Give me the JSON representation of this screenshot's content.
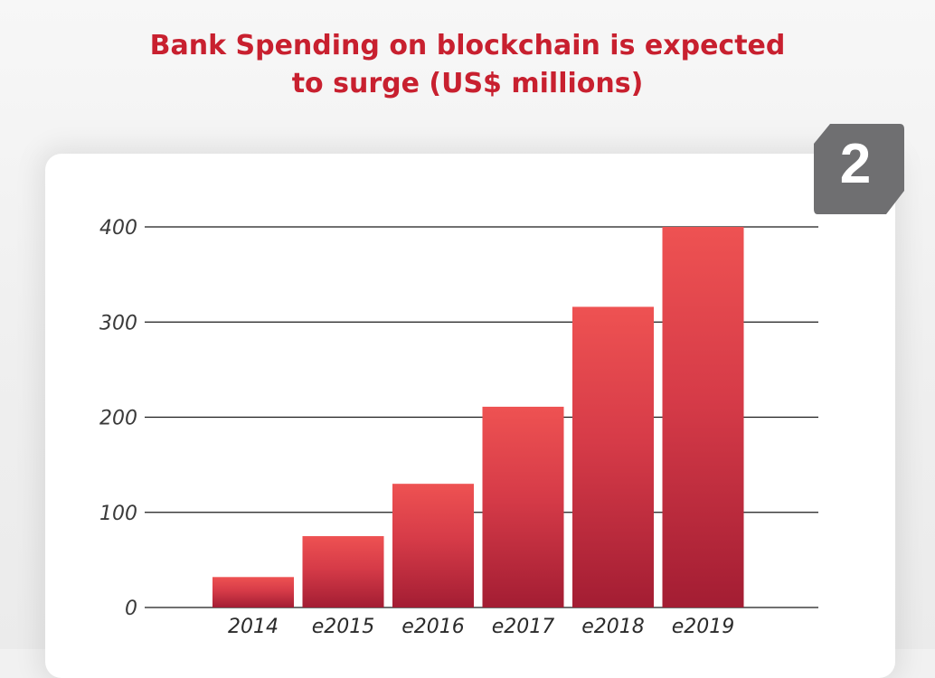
{
  "title_line1": "Bank Spending on blockchain is expected",
  "title_line2": "to surge (US$ millions)",
  "badge_number": "2",
  "colors": {
    "title": "#c8202f",
    "bar_top": "#ee5252",
    "bar_bottom": "#a31d33",
    "badge": "#6f6f71",
    "grid": "#1a1a1a"
  },
  "chart_data": {
    "type": "bar",
    "title": "Bank Spending on blockchain is expected to surge (US$ millions)",
    "xlabel": "",
    "ylabel": "",
    "categories": [
      "2014",
      "e2015",
      "e2016",
      "e2017",
      "e2018",
      "e2019"
    ],
    "values": [
      32,
      75,
      130,
      211,
      316,
      400
    ],
    "ylim": [
      0,
      400
    ],
    "yticks": [
      0,
      100,
      200,
      300,
      400
    ],
    "grid": true,
    "legend": "none"
  }
}
